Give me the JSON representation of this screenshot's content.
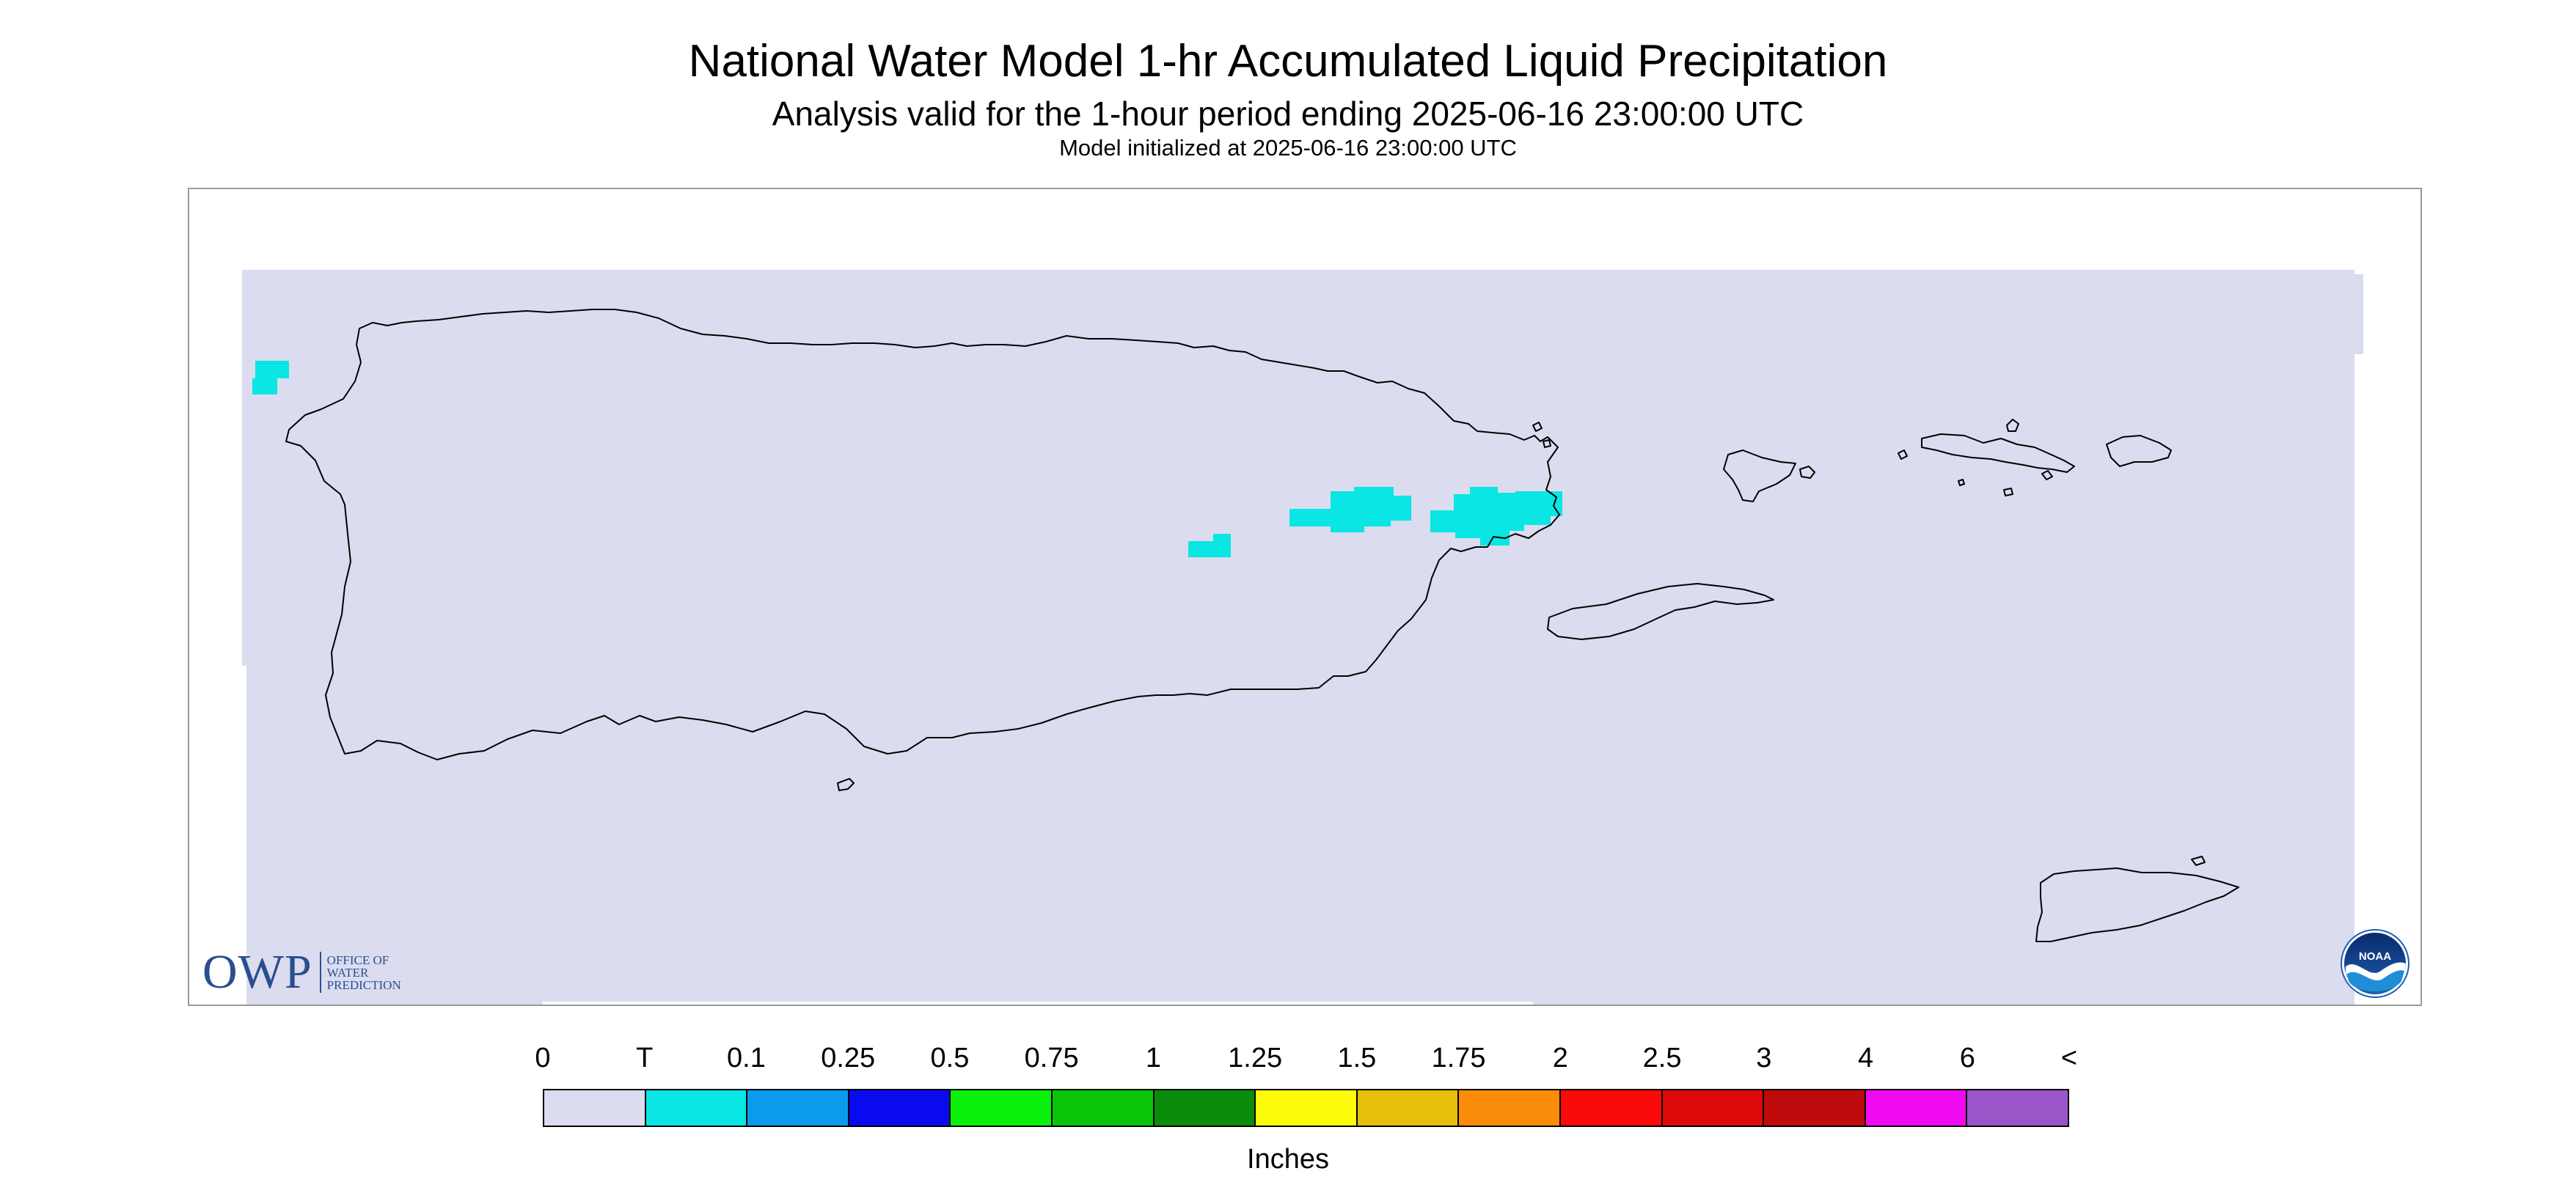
{
  "header": {
    "title": "National Water Model 1-hr Accumulated Liquid Precipitation",
    "subtitle": "Analysis valid for the 1-hour period ending 2025-06-16 23:00:00 UTC",
    "init": "Model initialized at 2025-06-16 23:00:00 UTC"
  },
  "logos": {
    "owp_abbr": "OWP",
    "owp_line1": "OFFICE OF",
    "owp_line2": "WATER",
    "owp_line3": "PREDICTION",
    "noaa": "NOAA"
  },
  "legend": {
    "labels": [
      "0",
      "T",
      "0.1",
      "0.25",
      "0.5",
      "0.75",
      "1",
      "1.25",
      "1.5",
      "1.75",
      "2",
      "2.5",
      "3",
      "4",
      "6",
      "<"
    ],
    "colors": [
      "#dbdcef",
      "#0ae6e3",
      "#0a9bef",
      "#0a0aef",
      "#0af00a",
      "#0ac40a",
      "#0a8c0a",
      "#fbfb0a",
      "#e6c00a",
      "#fb8c0a",
      "#fb0a0a",
      "#dc0a0a",
      "#be0a0a",
      "#f00af0",
      "#9a55c8"
    ],
    "units": "Inches"
  },
  "colors": {
    "no_precip": "#dbdcef",
    "trace": "#0ae6e3",
    "coastline": "#000000",
    "frame": "#9a9a9a"
  }
}
